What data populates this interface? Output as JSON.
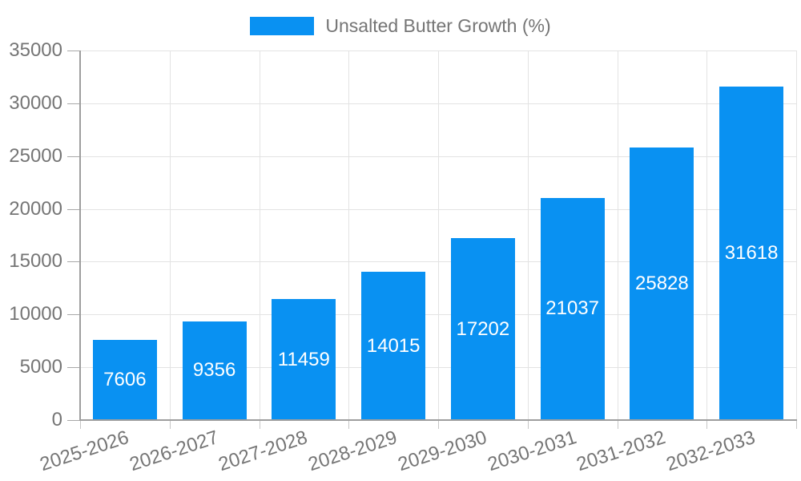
{
  "chart_data": {
    "type": "bar",
    "title": "",
    "legend_label": "Unsalted Butter Growth (%)",
    "legend_position": "top",
    "categories": [
      "2025-2026",
      "2026-2027",
      "2027-2028",
      "2028-2029",
      "2029-2030",
      "2030-2031",
      "2031-2032",
      "2032-2033"
    ],
    "series": [
      {
        "name": "Unsalted Butter Growth (%)",
        "values": [
          7606,
          9356,
          11459,
          14015,
          17202,
          21037,
          25828,
          31618
        ]
      }
    ],
    "bar_value_labels": [
      "7606",
      "9356",
      "11459",
      "14015",
      "17202",
      "21037",
      "25828",
      "31618"
    ],
    "xlabel": "",
    "ylabel": "",
    "ylim": [
      0,
      35000
    ],
    "yticks": [
      0,
      5000,
      10000,
      15000,
      20000,
      25000,
      30000,
      35000
    ],
    "ytick_labels": [
      "0",
      "5000",
      "10000",
      "15000",
      "20000",
      "25000",
      "30000",
      "35000"
    ],
    "grid": true,
    "colors": {
      "bar": "#0991F2",
      "bar_value_label": "#FFFFFF",
      "axis": "#9E9E9E",
      "grid": "#E3E3E3",
      "y_tick": "#A8A8A8",
      "x_tick": "#C6C6C6",
      "tick_label": "#757575",
      "legend_text": "#757575",
      "background": "#FFFFFF"
    }
  }
}
